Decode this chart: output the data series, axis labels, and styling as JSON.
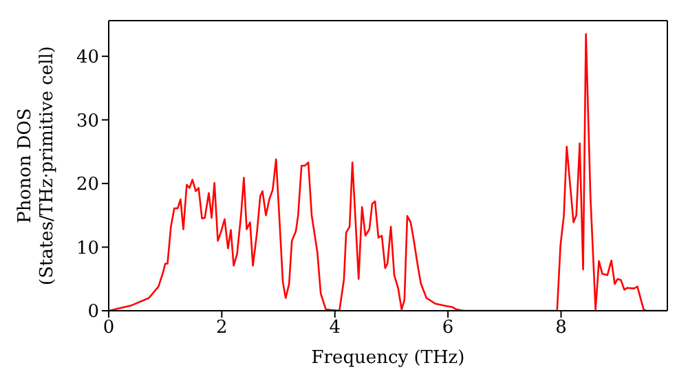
{
  "chart_data": {
    "type": "line",
    "xlabel": "Frequency (THz)",
    "ylabel": "Phonon DOS\n(States/THz·primitive cell)",
    "xlim": [
      0,
      9.88
    ],
    "ylim": [
      0,
      45.6
    ],
    "xticks": [
      0,
      2,
      4,
      6,
      8
    ],
    "yticks": [
      0,
      10,
      20,
      30,
      40
    ],
    "grid": false,
    "legend": false,
    "marker": "none",
    "line_style": "solid",
    "series": [
      {
        "color": "#ff0000",
        "x": [
          0,
          0.39,
          0.71,
          0.88,
          0.96,
          1.0,
          1.04,
          1.1,
          1.16,
          1.22,
          1.27,
          1.32,
          1.38,
          1.43,
          1.48,
          1.54,
          1.59,
          1.65,
          1.7,
          1.77,
          1.82,
          1.87,
          1.93,
          1.99,
          2.05,
          2.11,
          2.16,
          2.21,
          2.27,
          2.34,
          2.39,
          2.44,
          2.5,
          2.55,
          2.62,
          2.68,
          2.72,
          2.78,
          2.84,
          2.9,
          2.96,
          3.02,
          3.08,
          3.13,
          3.19,
          3.24,
          3.31,
          3.35,
          3.41,
          3.47,
          3.53,
          3.59,
          3.69,
          3.75,
          3.84,
          4.08,
          4.16,
          4.2,
          4.26,
          4.31,
          4.42,
          4.48,
          4.54,
          4.61,
          4.66,
          4.71,
          4.77,
          4.83,
          4.89,
          4.93,
          4.99,
          5.05,
          5.12,
          5.18,
          5.23,
          5.28,
          5.34,
          5.39,
          5.46,
          5.52,
          5.62,
          5.78,
          5.99,
          6.07,
          6.15,
          6.27,
          7.93,
          7.99,
          8.05,
          8.1,
          8.15,
          8.22,
          8.27,
          8.33,
          8.39,
          8.44,
          8.52,
          8.61,
          8.67,
          8.73,
          8.82,
          8.89,
          8.95,
          9.0,
          9.06,
          9.12,
          9.17,
          9.29,
          9.35,
          9.46,
          9.51,
          9.88
        ],
        "values": [
          0,
          0.8,
          2.0,
          3.8,
          6.0,
          7.4,
          7.4,
          13.2,
          16.1,
          16.1,
          17.5,
          12.8,
          19.8,
          19.3,
          20.6,
          18.8,
          19.3,
          14.5,
          14.6,
          18.5,
          14.6,
          20.1,
          11.0,
          12.5,
          14.4,
          9.8,
          12.7,
          7.1,
          8.9,
          15.0,
          20.9,
          12.8,
          13.9,
          7.1,
          12.1,
          18.0,
          18.8,
          15.0,
          17.5,
          19.0,
          23.8,
          14.3,
          4.5,
          2.0,
          4.2,
          11.0,
          12.5,
          15.0,
          22.8,
          22.8,
          23.3,
          15.0,
          9.2,
          2.7,
          0.2,
          0,
          4.9,
          12.3,
          13.2,
          23.3,
          5.0,
          16.3,
          11.8,
          12.8,
          16.8,
          17.2,
          11.5,
          11.8,
          6.7,
          7.4,
          13.2,
          5.6,
          3.5,
          0.2,
          1.7,
          14.9,
          13.9,
          11.4,
          7.4,
          4.3,
          2.0,
          1.1,
          0.7,
          0.6,
          0.2,
          0,
          0,
          10.3,
          15.0,
          25.8,
          20.8,
          13.9,
          15.0,
          26.3,
          6.5,
          43.5,
          17.9,
          0.2,
          7.8,
          5.8,
          5.6,
          7.9,
          4.2,
          5.0,
          4.8,
          3.3,
          3.6,
          3.5,
          3.8,
          0.2,
          0,
          0
        ]
      }
    ]
  }
}
